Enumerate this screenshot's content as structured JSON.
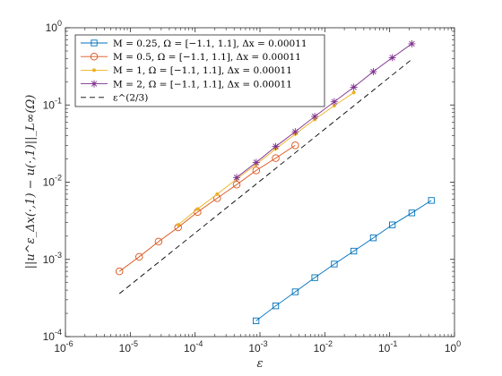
{
  "chart_data": {
    "type": "line",
    "xscale": "log",
    "yscale": "log",
    "xlim": [
      1e-06,
      1
    ],
    "ylim": [
      0.0001,
      1
    ],
    "xticks": [
      {
        "base": "10",
        "exp": "-6",
        "value": 1e-06
      },
      {
        "base": "10",
        "exp": "-5",
        "value": 1e-05
      },
      {
        "base": "10",
        "exp": "-4",
        "value": 0.0001
      },
      {
        "base": "10",
        "exp": "-3",
        "value": 0.001
      },
      {
        "base": "10",
        "exp": "-2",
        "value": 0.01
      },
      {
        "base": "10",
        "exp": "-1",
        "value": 0.1
      },
      {
        "base": "10",
        "exp": "0",
        "value": 1
      }
    ],
    "yticks": [
      {
        "base": "10",
        "exp": "-4",
        "value": 0.0001
      },
      {
        "base": "10",
        "exp": "-3",
        "value": 0.001
      },
      {
        "base": "10",
        "exp": "-2",
        "value": 0.01
      },
      {
        "base": "10",
        "exp": "-1",
        "value": 0.1
      },
      {
        "base": "10",
        "exp": "0",
        "value": 1
      }
    ],
    "xlabel": "ε",
    "ylabel": "||u^ε_Δx(·,1) − u(·,1)||_L∞(Ω)",
    "grid": false,
    "legend_position": "top-left",
    "series": [
      {
        "name": "M = 0.25,  Ω = [−1.1, 1.1],  Δx = 0.00011",
        "color": "#0072bd",
        "marker": "square",
        "line": "solid",
        "x": [
          0.00087,
          0.00175,
          0.0035,
          0.007,
          0.014,
          0.028,
          0.056,
          0.11,
          0.22,
          0.44
        ],
        "y": [
          0.00016,
          0.00025,
          0.00038,
          0.00058,
          0.00087,
          0.00128,
          0.0019,
          0.0028,
          0.004,
          0.0058
        ]
      },
      {
        "name": "M = 0.5,  Ω = [−1.1, 1.1],  Δx = 0.00011",
        "color": "#d95319",
        "marker": "circle",
        "line": "solid",
        "x": [
          6.8e-06,
          1.37e-05,
          2.73e-05,
          5.47e-05,
          0.000109,
          0.000219,
          0.000437,
          0.000875,
          0.00175,
          0.0035
        ],
        "y": [
          0.0007,
          0.00108,
          0.0017,
          0.0026,
          0.0041,
          0.0062,
          0.0093,
          0.0142,
          0.0205,
          0.03
        ]
      },
      {
        "name": "M = 1,  Ω = [−1.1, 1.1],  Δx = 0.00011",
        "color": "#edb120",
        "marker": "point",
        "line": "solid",
        "x": [
          5.47e-05,
          0.000109,
          0.000219,
          0.000437,
          0.000875,
          0.00175,
          0.0035,
          0.007,
          0.014,
          0.028
        ],
        "y": [
          0.0028,
          0.0045,
          0.007,
          0.011,
          0.017,
          0.027,
          0.042,
          0.065,
          0.098,
          0.145
        ]
      },
      {
        "name": "M = 2,  Ω = [−1.1, 1.1],  Δx = 0.00011",
        "color": "#7e2f8e",
        "marker": "asterisk",
        "line": "solid",
        "x": [
          0.000437,
          0.000875,
          0.00175,
          0.0035,
          0.007,
          0.014,
          0.028,
          0.056,
          0.11,
          0.22
        ],
        "y": [
          0.0115,
          0.018,
          0.029,
          0.045,
          0.071,
          0.11,
          0.17,
          0.27,
          0.41,
          0.62
        ]
      },
      {
        "name": "ε^(2/3)",
        "color": "#000000",
        "marker": "none",
        "line": "dashed",
        "x": [
          6.8e-06,
          0.22
        ],
        "y": [
          0.00036,
          0.39
        ]
      }
    ]
  }
}
